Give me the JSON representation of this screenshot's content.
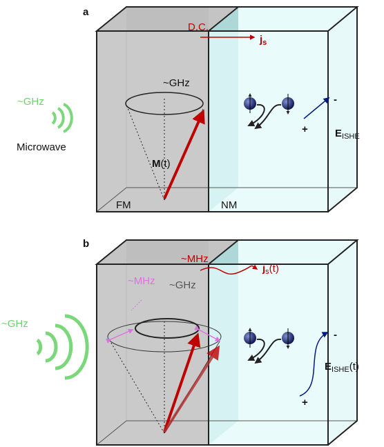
{
  "panels": [
    {
      "label": "a",
      "current": {
        "label": "D.C.",
        "symbol": "j",
        "subscript": "s"
      },
      "precession": "~GHz",
      "microwave": {
        "frequency": "~GHz",
        "label": "Microwave"
      },
      "magnetization": {
        "symbol": "M",
        "argument": "(t)"
      },
      "field": {
        "minus": "-",
        "plus": "+",
        "symbol": "E",
        "subscript": "ISHE"
      },
      "layers": [
        "FM",
        "NM"
      ]
    },
    {
      "label": "b",
      "current": {
        "label": "~MHz",
        "symbol": "j",
        "subscript": "s",
        "argument": "(t)"
      },
      "modulation": "~MHz",
      "precession": "~GHz",
      "microwave": {
        "frequency": "~GHz"
      },
      "field": {
        "minus": "-",
        "plus": "+",
        "symbol": "E",
        "subscript": "ISHE",
        "argument": "(t)"
      }
    }
  ]
}
